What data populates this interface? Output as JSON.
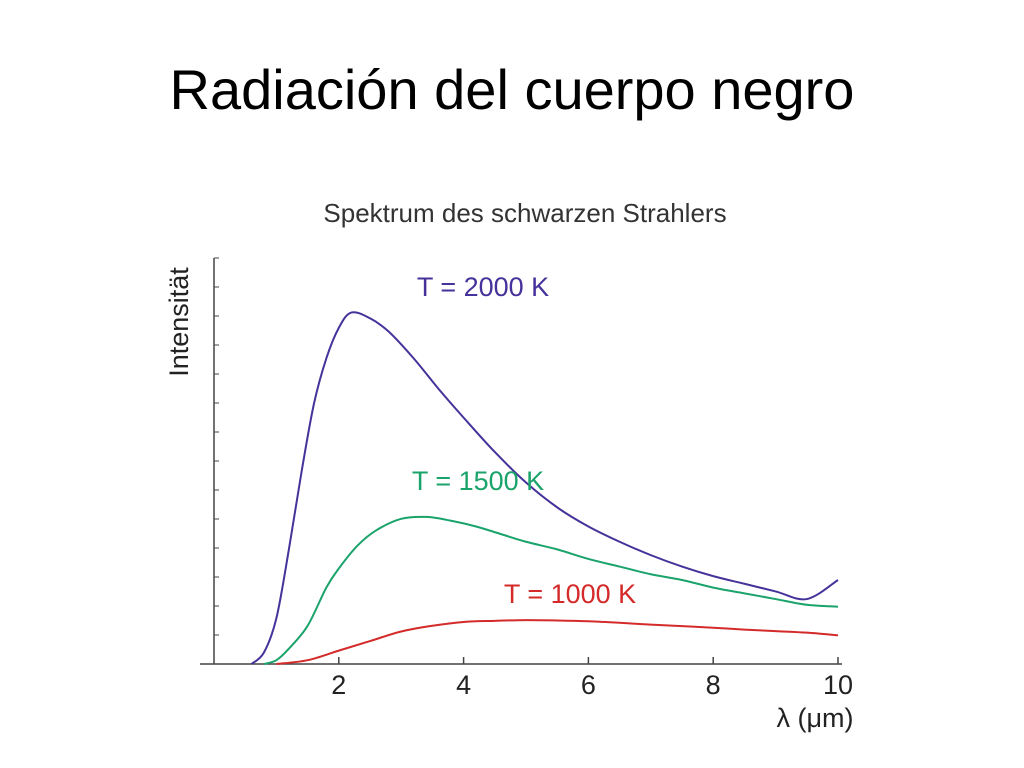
{
  "slide": {
    "title": "Radiación del cuerpo negro"
  },
  "chart_data": {
    "type": "line",
    "title": "Spektrum des schwarzen Strahlers",
    "xlabel": "λ (μm)",
    "ylabel": "Intensität",
    "xlim": [
      0,
      10
    ],
    "ylim": [
      0,
      1
    ],
    "xticks": [
      2,
      4,
      6,
      8,
      10
    ],
    "yticks_labeled": false,
    "grid": false,
    "series": [
      {
        "name": "T = 2000 K",
        "color": "#46329a",
        "x": [
          0.6,
          0.8,
          1.0,
          1.2,
          1.4,
          1.6,
          1.8,
          2.0,
          2.2,
          2.5,
          2.8,
          3.2,
          3.6,
          4.0,
          4.5,
          5.0,
          5.5,
          6.0,
          6.5,
          7.0,
          7.5,
          8.0,
          8.5,
          9.0,
          9.5,
          10.0
        ],
        "y": [
          0.0,
          0.03,
          0.12,
          0.3,
          0.5,
          0.68,
          0.8,
          0.88,
          0.92,
          0.905,
          0.87,
          0.8,
          0.72,
          0.645,
          0.555,
          0.475,
          0.41,
          0.36,
          0.32,
          0.285,
          0.255,
          0.23,
          0.21,
          0.19,
          0.17,
          0.22
        ]
      },
      {
        "name": "T = 1500 K",
        "color": "#1aa36a",
        "x": [
          0.8,
          1.0,
          1.2,
          1.5,
          1.8,
          2.0,
          2.3,
          2.6,
          3.0,
          3.4,
          3.8,
          4.2,
          4.6,
          5.0,
          5.5,
          6.0,
          6.5,
          7.0,
          7.5,
          8.0,
          8.5,
          9.0,
          9.5,
          10.0
        ],
        "y": [
          0.0,
          0.01,
          0.04,
          0.1,
          0.2,
          0.25,
          0.31,
          0.35,
          0.38,
          0.385,
          0.375,
          0.36,
          0.34,
          0.32,
          0.3,
          0.275,
          0.255,
          0.235,
          0.22,
          0.2,
          0.185,
          0.17,
          0.155,
          0.15
        ]
      },
      {
        "name": "T = 1000 K",
        "color": "#d42a2a",
        "x": [
          1.0,
          1.5,
          2.0,
          2.5,
          3.0,
          3.5,
          4.0,
          4.5,
          5.0,
          5.5,
          6.0,
          6.5,
          7.0,
          7.5,
          8.0,
          8.5,
          9.0,
          9.5,
          10.0
        ],
        "y": [
          0.0,
          0.01,
          0.035,
          0.06,
          0.085,
          0.1,
          0.11,
          0.113,
          0.115,
          0.114,
          0.112,
          0.108,
          0.103,
          0.099,
          0.095,
          0.09,
          0.086,
          0.082,
          0.075
        ]
      }
    ]
  }
}
